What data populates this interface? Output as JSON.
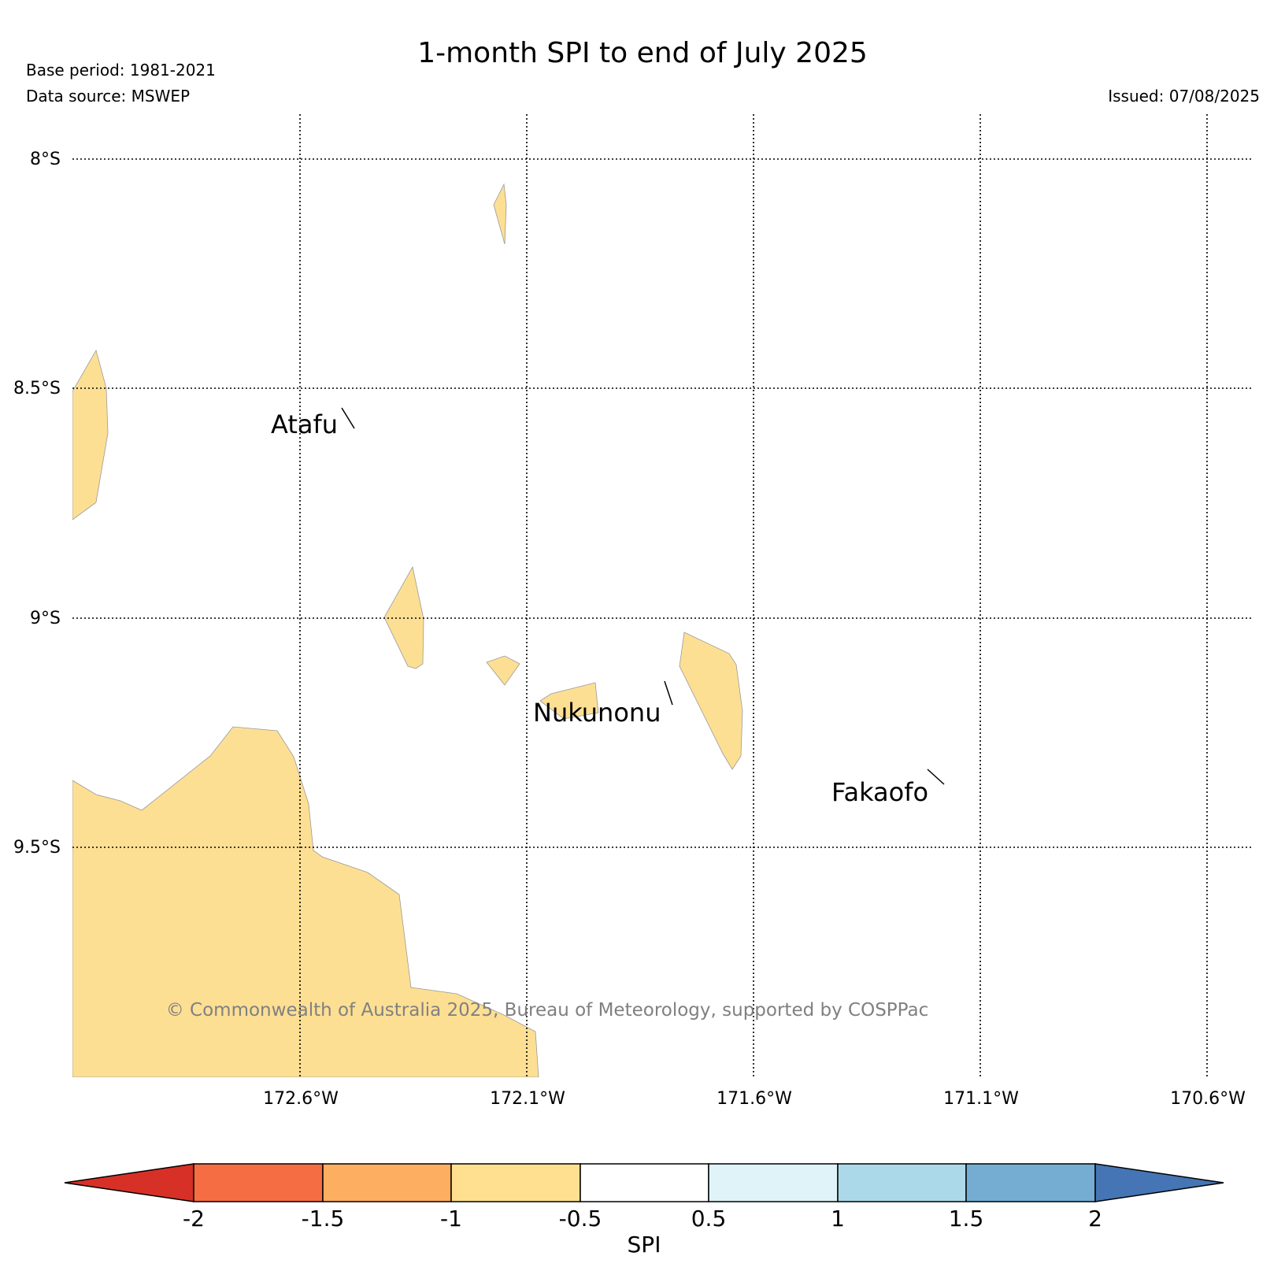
{
  "title": "1-month SPI to end of July 2025",
  "base_period": "Base period: 1981-2021",
  "data_source": "Data source: MSWEP",
  "issued": "Issued: 07/08/2025",
  "copyright": "© Commonwealth of Australia 2025, Bureau of Meteorology, supported by COSPPac",
  "map": {
    "lat_labels": [
      "8°S",
      "8.5°S",
      "9°S",
      "9.5°S"
    ],
    "lon_labels": [
      "172.6°W",
      "172.1°W",
      "171.6°W",
      "171.1°W",
      "170.6°W"
    ],
    "places": [
      {
        "name": "Atafu",
        "lon": -172.51,
        "lat": -8.56
      },
      {
        "name": "Nukunonu",
        "lon": -171.83,
        "lat": -9.17
      },
      {
        "name": "Fakaofo",
        "lon": -171.25,
        "lat": -9.37
      }
    ],
    "fill_color": "#fddf94",
    "fill_category": "-1 to -0.5"
  },
  "colorbar": {
    "label": "SPI",
    "ticks": [
      "-2",
      "-1.5",
      "-1",
      "-0.5",
      "0.5",
      "1",
      "1.5",
      "2"
    ],
    "under_color": "#d73027",
    "over_color": "#4575b4",
    "colors": [
      "#f46d43",
      "#fdae61",
      "#fee090",
      "#ffffff",
      "#e0f3f8",
      "#abd9e9",
      "#74add1"
    ]
  }
}
